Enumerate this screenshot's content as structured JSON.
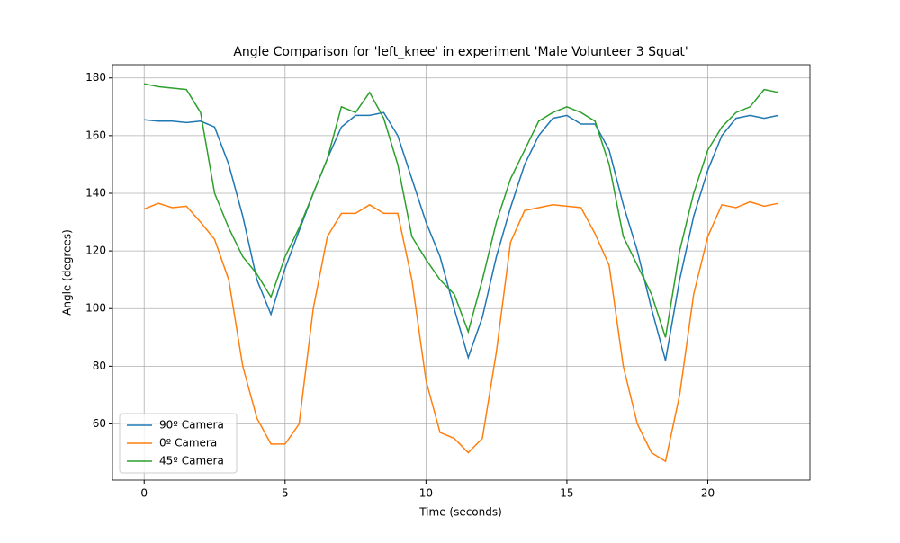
{
  "chart_data": {
    "type": "line",
    "title": "Angle Comparison for 'left_knee' in experiment 'Male Volunteer 3 Squat'",
    "x_label": "Time (seconds)",
    "y_label": "Angle (degrees)",
    "x": [
      0,
      0.5,
      1,
      1.5,
      2,
      2.5,
      3,
      3.5,
      4,
      4.5,
      5,
      5.5,
      6,
      6.5,
      7,
      7.5,
      8,
      8.5,
      9,
      9.5,
      10,
      10.5,
      11,
      11.5,
      12,
      12.5,
      13,
      13.5,
      14,
      14.5,
      15,
      15.5,
      16,
      16.5,
      17,
      17.5,
      18,
      18.5,
      19,
      19.5,
      20,
      20.5,
      21,
      21.5,
      22,
      22.5
    ],
    "series": [
      {
        "name": "90º Camera",
        "color": "#1f77b4",
        "values": [
          165.5,
          165,
          165,
          164.5,
          165,
          163,
          150,
          132,
          110,
          98,
          114,
          127,
          140,
          152,
          163,
          167,
          167,
          168,
          160,
          145,
          130,
          118,
          100,
          83,
          97,
          118,
          135,
          150,
          160,
          166,
          167,
          164,
          164,
          155,
          136,
          120,
          100,
          82,
          110,
          132,
          148,
          160,
          166,
          167,
          166,
          167
        ]
      },
      {
        "name": "0º Camera",
        "color": "#ff7f0e",
        "values": [
          134.5,
          136.5,
          135,
          135.5,
          130,
          124,
          110,
          80,
          62,
          53,
          53,
          60,
          100,
          125,
          133,
          133,
          136,
          133,
          133,
          110,
          75,
          57,
          55,
          50,
          55,
          85,
          123,
          134,
          135,
          136,
          135.5,
          135,
          126,
          115,
          80,
          60,
          50,
          47,
          70,
          105,
          125,
          136,
          135,
          137,
          135.5,
          136.5
        ]
      },
      {
        "name": "45º Camera",
        "color": "#2ca02c",
        "values": [
          178,
          177,
          176.5,
          176,
          168,
          140,
          128,
          118,
          112,
          104,
          118,
          128,
          140,
          152,
          170,
          168,
          175,
          166,
          150,
          125,
          117,
          110,
          105,
          92,
          110,
          130,
          145,
          155,
          165,
          168,
          170,
          168,
          165,
          150,
          125,
          115,
          105,
          90,
          120,
          140,
          155,
          163,
          168,
          170,
          176,
          175
        ]
      }
    ],
    "xlim": [
      -1.125,
      23.625
    ],
    "ylim": [
      40.5,
      184.6
    ],
    "xticks": [
      0,
      5,
      10,
      15,
      20
    ],
    "yticks": [
      60,
      80,
      100,
      120,
      140,
      160,
      180
    ],
    "grid": true,
    "legend": "lower left"
  }
}
